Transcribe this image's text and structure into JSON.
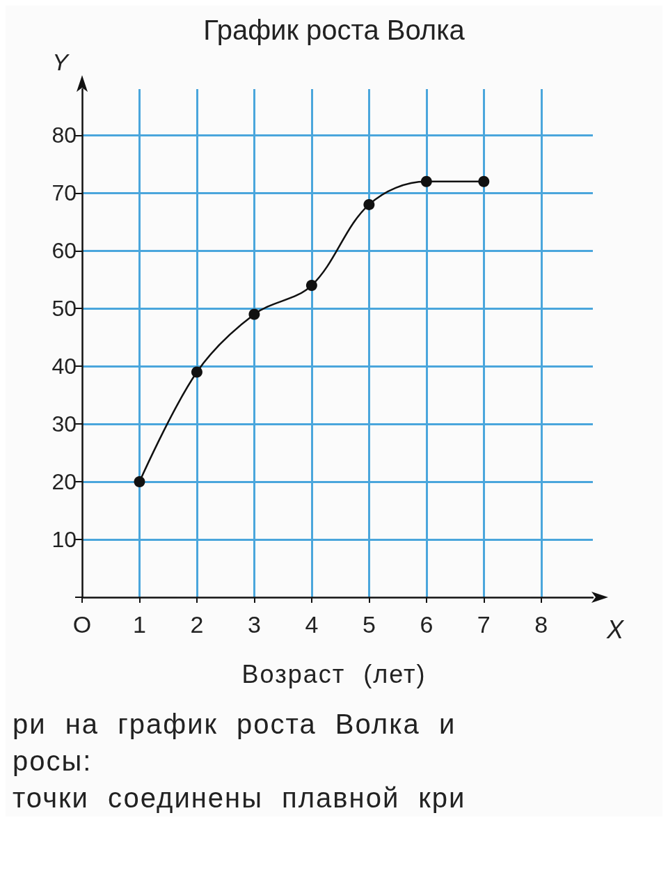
{
  "chart_data": {
    "type": "line",
    "title": "График роста Волка",
    "xlabel": "X",
    "ylabel": "Y",
    "x": [
      1,
      2,
      3,
      4,
      5,
      6,
      7
    ],
    "series": [
      {
        "color": "#111111",
        "values": [
          20,
          39,
          49,
          54,
          68,
          72,
          72
        ]
      }
    ],
    "xlim": [
      0,
      8.9
    ],
    "xticks": [
      {
        "value": 0,
        "label": "O"
      },
      1,
      2,
      3,
      4,
      5,
      6,
      7,
      8
    ],
    "ylim": [
      0,
      88
    ],
    "yticks": [
      {
        "value": 0,
        "label": null
      },
      10,
      20,
      30,
      40,
      50,
      60,
      70,
      80
    ],
    "grid": true,
    "marker": "circle",
    "line_style": "solid",
    "annotations": [
      "Возраст (лет)",
      "ри на график роста Волка и",
      "росы:",
      "точки соединены плавной кри"
    ]
  }
}
